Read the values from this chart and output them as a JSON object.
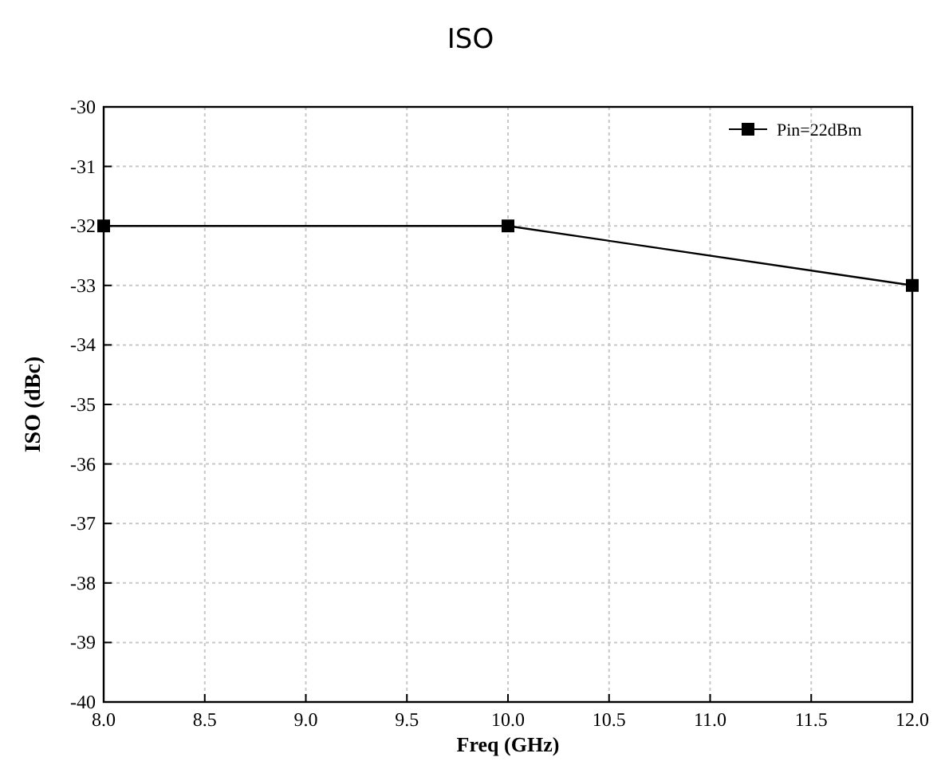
{
  "chart_data": {
    "type": "line",
    "title": "ISO",
    "xlabel": "Freq (GHz)",
    "ylabel": "ISO (dBc)",
    "x": [
      8,
      10,
      12
    ],
    "series": [
      {
        "name": "Pin=22dBm",
        "color": "#000000",
        "values": [
          -32,
          -32,
          -33
        ]
      }
    ],
    "xlim": [
      8,
      12
    ],
    "xticks": [
      {
        "value": 8,
        "label": "8.0"
      },
      {
        "value": 8.5,
        "label": "8.5"
      },
      {
        "value": 9,
        "label": "9.0"
      },
      {
        "value": 9.5,
        "label": "9.5"
      },
      {
        "value": 10,
        "label": "10.0"
      },
      {
        "value": 10.5,
        "label": "10.5"
      },
      {
        "value": 11,
        "label": "11.0"
      },
      {
        "value": 11.5,
        "label": "11.5"
      },
      {
        "value": 12,
        "label": "12.0"
      }
    ],
    "ylim": [
      -40,
      -30
    ],
    "yticks": [
      -40,
      -39,
      -38,
      -37,
      -36,
      -35,
      -34,
      -33,
      -32,
      -31,
      -30
    ],
    "grid": true,
    "legend": "top right",
    "marker": "square",
    "line_style": "solid"
  }
}
